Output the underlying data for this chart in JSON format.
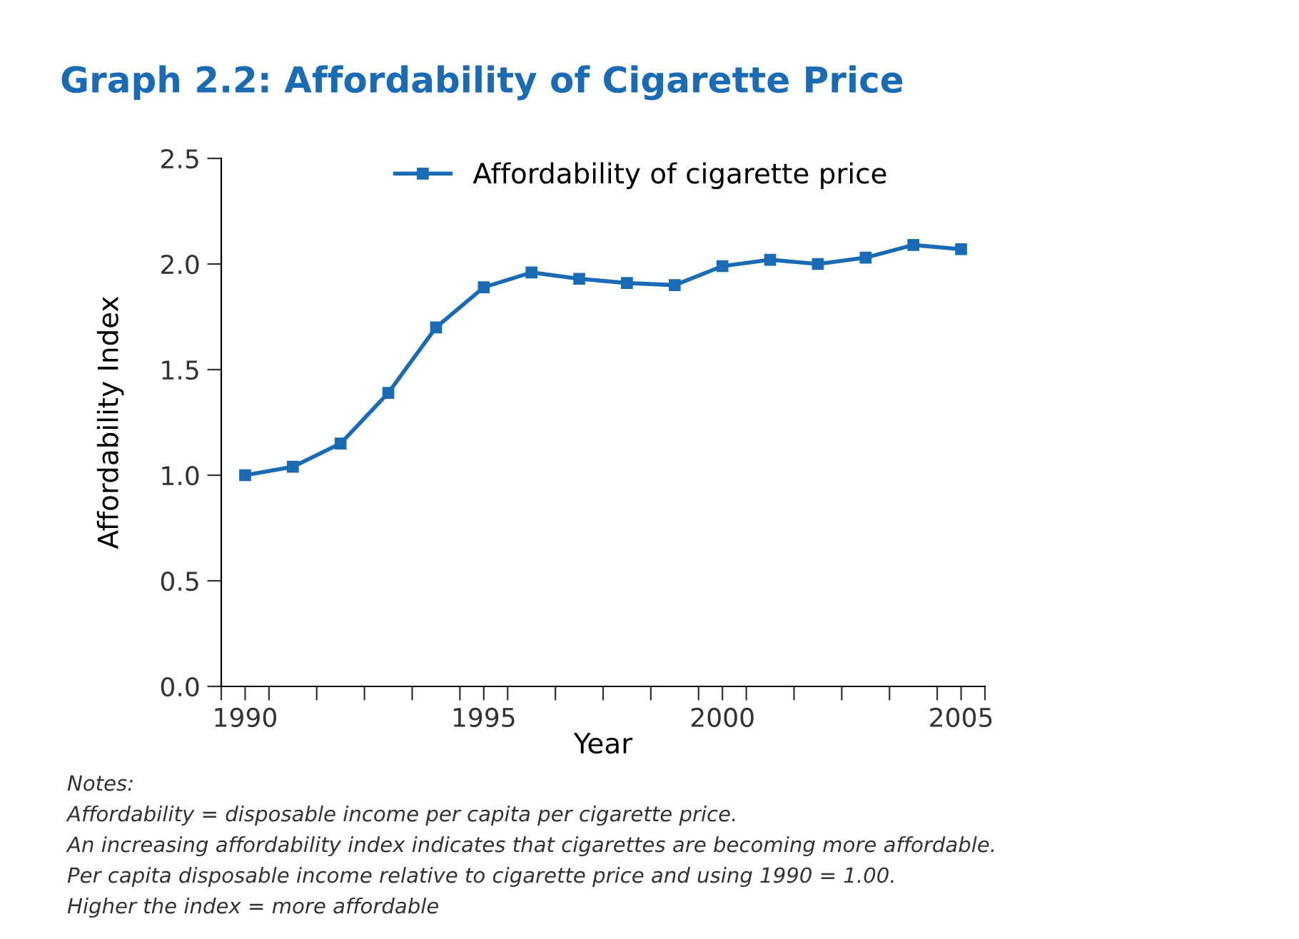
{
  "chart_data": {
    "type": "line",
    "title": "Graph 2.2: Affordability of Cigarette Price",
    "xlabel": "Year",
    "ylabel": "Affordability Index",
    "x": [
      1990,
      1991,
      1992,
      1993,
      1994,
      1995,
      1996,
      1997,
      1998,
      1999,
      2000,
      2001,
      2002,
      2003,
      2004,
      2005
    ],
    "series": [
      {
        "name": "Affordability of cigarette price",
        "color": "#1a6bb5",
        "values": [
          1.0,
          1.04,
          1.15,
          1.39,
          1.7,
          1.89,
          1.96,
          1.93,
          1.91,
          1.9,
          1.99,
          2.02,
          2.0,
          2.03,
          2.09,
          2.07
        ]
      }
    ],
    "xlim": [
      1989.5,
      2005.5
    ],
    "xticks": [
      {
        "value": 1989.5,
        "label": null
      },
      {
        "value": 1990,
        "label": "1990"
      },
      {
        "value": 1990.5,
        "label": null
      },
      {
        "value": 1991.5,
        "label": null
      },
      {
        "value": 1992.5,
        "label": null
      },
      {
        "value": 1993.5,
        "label": null
      },
      {
        "value": 1994.5,
        "label": null
      },
      {
        "value": 1995,
        "label": "1995"
      },
      {
        "value": 1995.5,
        "label": null
      },
      {
        "value": 1996.5,
        "label": null
      },
      {
        "value": 1997.5,
        "label": null
      },
      {
        "value": 1998.5,
        "label": null
      },
      {
        "value": 1999.5,
        "label": null
      },
      {
        "value": 2000,
        "label": "2000"
      },
      {
        "value": 2000.5,
        "label": null
      },
      {
        "value": 2001.5,
        "label": null
      },
      {
        "value": 2002.5,
        "label": null
      },
      {
        "value": 2003.5,
        "label": null
      },
      {
        "value": 2004.5,
        "label": null
      },
      {
        "value": 2005,
        "label": "2005"
      },
      {
        "value": 2005.5,
        "label": null
      }
    ],
    "ylim": [
      0,
      2.5
    ],
    "yticks": [
      {
        "value": 0,
        "label": "0.0"
      },
      {
        "value": 0.5,
        "label": "0.5"
      },
      {
        "value": 1,
        "label": "1.0"
      },
      {
        "value": 1.5,
        "label": "1.5"
      },
      {
        "value": 2,
        "label": "2.0"
      },
      {
        "value": 2.5,
        "label": "2.5"
      }
    ],
    "grid": false,
    "legend": "top",
    "marker": "square",
    "line_style": "solid",
    "annotations": [
      "Notes:",
      "Affordability = disposable income per capita per cigarette price.",
      "An increasing affordability index indicates that cigarettes are becoming more affordable.",
      "Per capita disposable income relative to cigarette price and using 1990 = 1.00.",
      "Higher the index = more affordable"
    ]
  }
}
